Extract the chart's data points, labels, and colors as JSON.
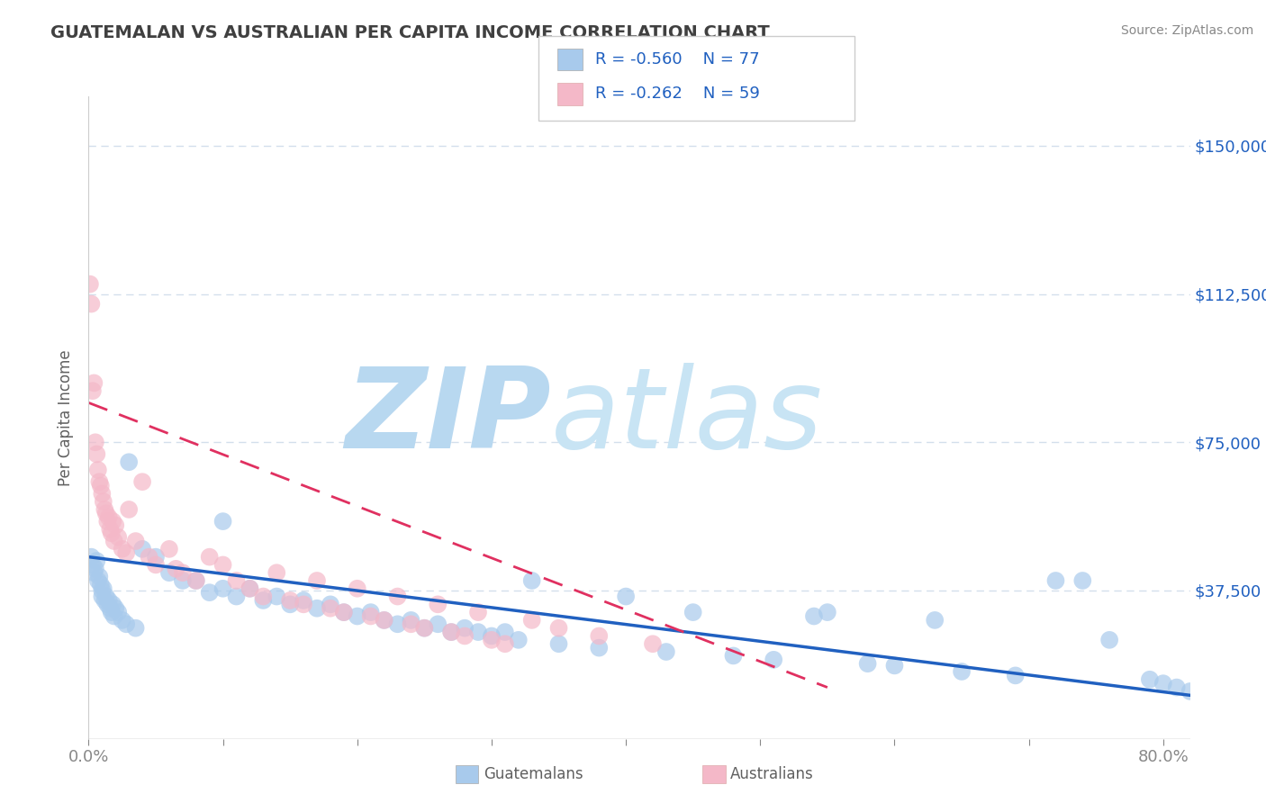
{
  "title": "GUATEMALAN VS AUSTRALIAN PER CAPITA INCOME CORRELATION CHART",
  "source": "Source: ZipAtlas.com",
  "ylabel": "Per Capita Income",
  "xlim": [
    0.0,
    0.82
  ],
  "ylim": [
    0,
    162500
  ],
  "yticks": [
    0,
    37500,
    75000,
    112500,
    150000
  ],
  "ytick_labels": [
    "",
    "$37,500",
    "$75,000",
    "$112,500",
    "$150,000"
  ],
  "xticks": [
    0.0,
    0.1,
    0.2,
    0.3,
    0.4,
    0.5,
    0.6,
    0.7,
    0.8
  ],
  "xtick_labels": [
    "0.0%",
    "",
    "",
    "",
    "",
    "",
    "",
    "",
    "80.0%"
  ],
  "blue_R": -0.56,
  "blue_N": 77,
  "pink_R": -0.262,
  "pink_N": 59,
  "blue_color": "#a8caec",
  "pink_color": "#f4b8c8",
  "blue_line_color": "#2060c0",
  "pink_line_color": "#e03060",
  "legend_text_color": "#2060c0",
  "title_color": "#404040",
  "axis_label_color": "#606060",
  "tick_color": "#2060c0",
  "grid_color": "#c8d8e8",
  "background_color": "#ffffff",
  "watermark_zip": "ZIP",
  "watermark_atlas": "atlas",
  "watermark_color_zip": "#b8d8f0",
  "watermark_color_atlas": "#c8e4f4",
  "watermark_fontsize": 90,
  "blue_line_x0": 0.0,
  "blue_line_y0": 46000,
  "blue_line_x1": 0.82,
  "blue_line_y1": 11000,
  "pink_line_x0": 0.0,
  "pink_line_y0": 85000,
  "pink_line_x1": 0.55,
  "pink_line_y1": 13000,
  "blue_x": [
    0.002,
    0.003,
    0.004,
    0.005,
    0.006,
    0.007,
    0.008,
    0.009,
    0.01,
    0.01,
    0.011,
    0.012,
    0.013,
    0.014,
    0.015,
    0.016,
    0.017,
    0.018,
    0.019,
    0.02,
    0.022,
    0.025,
    0.028,
    0.03,
    0.035,
    0.04,
    0.05,
    0.06,
    0.07,
    0.08,
    0.09,
    0.1,
    0.1,
    0.11,
    0.12,
    0.13,
    0.14,
    0.15,
    0.16,
    0.17,
    0.18,
    0.19,
    0.2,
    0.21,
    0.22,
    0.23,
    0.24,
    0.25,
    0.26,
    0.27,
    0.28,
    0.29,
    0.3,
    0.31,
    0.32,
    0.33,
    0.35,
    0.38,
    0.4,
    0.43,
    0.45,
    0.48,
    0.51,
    0.54,
    0.55,
    0.58,
    0.6,
    0.63,
    0.65,
    0.69,
    0.72,
    0.74,
    0.76,
    0.79,
    0.8,
    0.81,
    0.82
  ],
  "blue_y": [
    46000,
    44000,
    42000,
    43000,
    45000,
    40000,
    41000,
    39000,
    37500,
    36000,
    38000,
    35000,
    36000,
    34000,
    35000,
    33000,
    32000,
    34000,
    31000,
    33000,
    32000,
    30000,
    29000,
    70000,
    28000,
    48000,
    46000,
    42000,
    40000,
    40000,
    37000,
    55000,
    38000,
    36000,
    38000,
    35000,
    36000,
    34000,
    35000,
    33000,
    34000,
    32000,
    31000,
    32000,
    30000,
    29000,
    30000,
    28000,
    29000,
    27000,
    28000,
    27000,
    26000,
    27000,
    25000,
    40000,
    24000,
    23000,
    36000,
    22000,
    32000,
    21000,
    20000,
    31000,
    32000,
    19000,
    18500,
    30000,
    17000,
    16000,
    40000,
    40000,
    25000,
    15000,
    14000,
    13000,
    12000
  ],
  "pink_x": [
    0.001,
    0.002,
    0.003,
    0.004,
    0.005,
    0.006,
    0.007,
    0.008,
    0.009,
    0.01,
    0.011,
    0.012,
    0.013,
    0.014,
    0.015,
    0.016,
    0.017,
    0.018,
    0.019,
    0.02,
    0.022,
    0.025,
    0.028,
    0.03,
    0.035,
    0.04,
    0.045,
    0.05,
    0.06,
    0.065,
    0.07,
    0.08,
    0.09,
    0.1,
    0.11,
    0.12,
    0.13,
    0.14,
    0.15,
    0.16,
    0.17,
    0.18,
    0.19,
    0.2,
    0.21,
    0.22,
    0.23,
    0.24,
    0.25,
    0.26,
    0.27,
    0.28,
    0.29,
    0.3,
    0.31,
    0.33,
    0.35,
    0.38,
    0.42
  ],
  "pink_y": [
    115000,
    110000,
    88000,
    90000,
    75000,
    72000,
    68000,
    65000,
    64000,
    62000,
    60000,
    58000,
    57000,
    55000,
    56000,
    53000,
    52000,
    55000,
    50000,
    54000,
    51000,
    48000,
    47000,
    58000,
    50000,
    65000,
    46000,
    44000,
    48000,
    43000,
    42000,
    40000,
    46000,
    44000,
    40000,
    38000,
    36000,
    42000,
    35000,
    34000,
    40000,
    33000,
    32000,
    38000,
    31000,
    30000,
    36000,
    29000,
    28000,
    34000,
    27000,
    26000,
    32000,
    25000,
    24000,
    30000,
    28000,
    26000,
    24000
  ]
}
